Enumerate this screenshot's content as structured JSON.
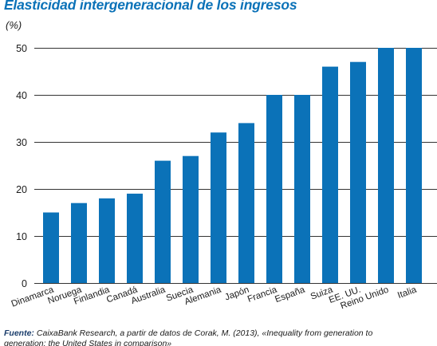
{
  "source": {
    "label": "Fuente:",
    "line1": "CaixaBank Research, a partir de datos de Corak, M. (2013), «Inequality from generation to",
    "line2": "generation: the United States in comparison»"
  },
  "colors": {
    "bar": "#0b72b8",
    "title": "#0b72b8",
    "grid": "#333333",
    "source_label": "#1a3d6b"
  },
  "chart_data": {
    "type": "bar",
    "title": "Elasticidad intergeneracional de los ingresos",
    "ylabel": "(%)",
    "xlabel": "",
    "categories": [
      "Dinamarca",
      "Noruega",
      "Finlandia",
      "Canadá",
      "Australia",
      "Suecia",
      "Alemania",
      "Japón",
      "Francia",
      "España",
      "Suiza",
      "EE. UU.",
      "Reino Unido",
      "Italia"
    ],
    "values": [
      15,
      17,
      18,
      19,
      26,
      27,
      32,
      34,
      40,
      40,
      46,
      47,
      50,
      50
    ],
    "ylim": [
      0,
      50
    ],
    "yticks": [
      0,
      10,
      20,
      30,
      40,
      50
    ],
    "grid": true,
    "legend": "none"
  }
}
